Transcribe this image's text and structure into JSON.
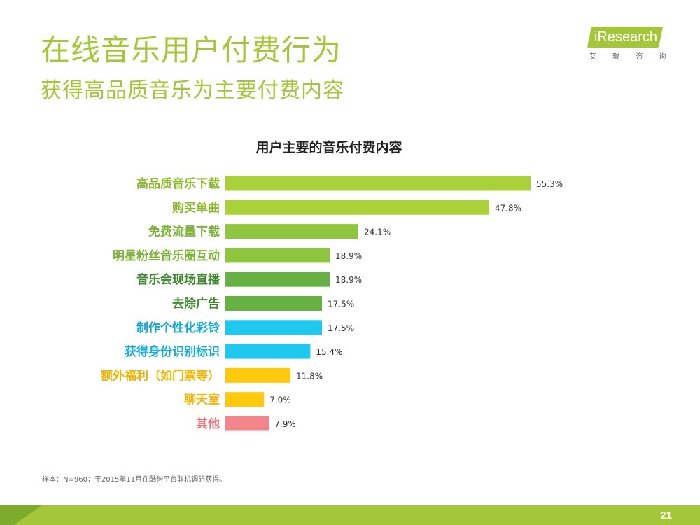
{
  "page": {
    "title": "在线音乐用户付费行为",
    "subtitle": "获得高品质音乐为主要付费内容",
    "footnote": "样本：N=960；于2015年11月在酷狗平台联机调研获得。",
    "page_number": "21"
  },
  "logo": {
    "text": "iResearch",
    "sub": "艾 瑞 咨 询",
    "color": "#a4c639"
  },
  "chart_data": {
    "type": "bar",
    "orientation": "horizontal",
    "title": "用户主要的音乐付费内容",
    "categories": [
      "高品质音乐下载",
      "购买单曲",
      "免费流量下载",
      "明星粉丝音乐圈互动",
      "音乐会现场直播",
      "去除广告",
      "制作个性化彩铃",
      "获得身份识别标识",
      "额外福利（如门票等）",
      "聊天室",
      "其他"
    ],
    "values": [
      55.3,
      47.8,
      24.1,
      18.9,
      18.9,
      17.5,
      17.5,
      15.4,
      11.8,
      7.0,
      7.9
    ],
    "value_labels": [
      "55.3%",
      "47.8%",
      "24.1%",
      "18.9%",
      "18.9%",
      "17.5%",
      "17.5%",
      "15.4%",
      "11.8%",
      "7.0%",
      "7.9%"
    ],
    "colors": [
      "#a8d13a",
      "#a8d13a",
      "#8ec63f",
      "#8ec63f",
      "#66b044",
      "#66b044",
      "#1ec8ef",
      "#1ec8ef",
      "#ffc90d",
      "#ffc90d",
      "#f4858a"
    ],
    "label_colors": [
      "#8ab82f",
      "#8ab82f",
      "#7bb23a",
      "#7bb23a",
      "#3f8a2e",
      "#3f8a2e",
      "#14a9d8",
      "#14a9d8",
      "#f0b400",
      "#f0b400",
      "#ea6f78"
    ],
    "xlim": [
      0,
      60
    ],
    "grid": false,
    "legend": "none"
  }
}
